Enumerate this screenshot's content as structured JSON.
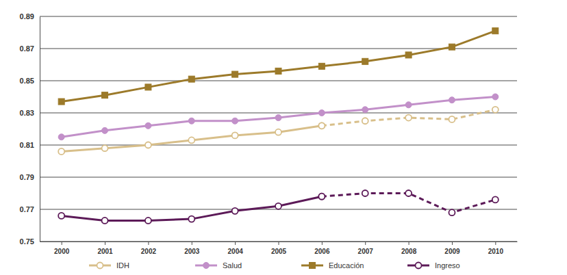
{
  "chart_data": {
    "type": "line",
    "categories": [
      "2000",
      "2001",
      "2002",
      "2003",
      "2004",
      "2005",
      "2006",
      "2007",
      "2008",
      "2009",
      "2010"
    ],
    "ylim": [
      0.75,
      0.89
    ],
    "yticks": [
      0.75,
      0.77,
      0.79,
      0.81,
      0.83,
      0.85,
      0.87,
      0.89
    ],
    "grid": true,
    "legend": "bottom",
    "series": [
      {
        "name": "IDH",
        "color": "#d8bf8a",
        "marker": "circle-open",
        "line_style": "solid",
        "values": [
          0.806,
          0.808,
          0.81,
          0.813,
          0.816,
          0.818,
          0.822,
          null,
          null,
          null,
          null
        ]
      },
      {
        "name": "IDH",
        "color": "#d8bf8a",
        "marker": "circle-open",
        "line_style": "dashed",
        "values": [
          null,
          null,
          null,
          null,
          null,
          null,
          0.822,
          0.825,
          0.827,
          0.826,
          0.832
        ]
      },
      {
        "name": "Salud",
        "color": "#c290c9",
        "marker": "circle",
        "line_style": "solid",
        "values": [
          0.815,
          0.819,
          0.822,
          0.825,
          0.825,
          0.827,
          0.83,
          0.832,
          0.835,
          0.838,
          0.84
        ]
      },
      {
        "name": "Educación",
        "color": "#9c7a2a",
        "marker": "square",
        "line_style": "solid",
        "values": [
          0.837,
          0.841,
          0.846,
          0.851,
          0.854,
          0.856,
          0.859,
          0.862,
          0.866,
          0.871,
          0.881
        ]
      },
      {
        "name": "Ingreso",
        "color": "#5c1a58",
        "marker": "circle-open",
        "line_style": "solid",
        "values": [
          0.766,
          0.763,
          0.763,
          0.764,
          0.769,
          0.772,
          0.778,
          null,
          null,
          null,
          null
        ]
      },
      {
        "name": "Ingreso",
        "color": "#5c1a58",
        "marker": "circle-open",
        "line_style": "dashed",
        "values": [
          null,
          null,
          null,
          null,
          null,
          null,
          0.778,
          0.78,
          0.78,
          0.768,
          0.776
        ]
      }
    ]
  }
}
